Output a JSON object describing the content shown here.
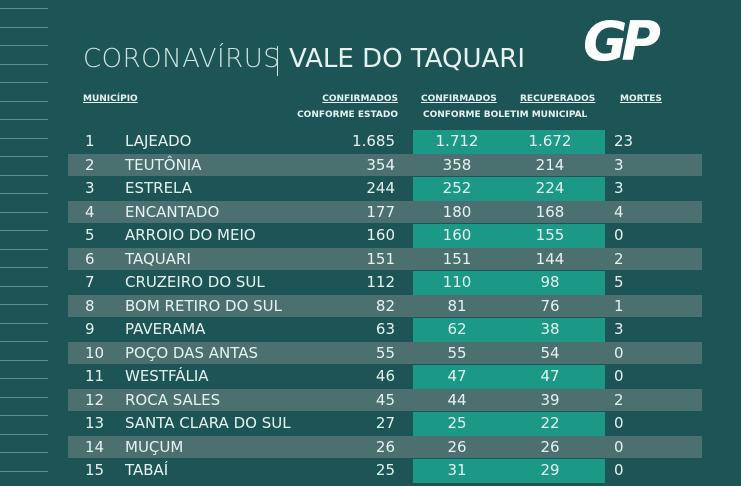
{
  "header": {
    "title": "CORONAVÍRUS",
    "subtitle": "VALE DO TAQUARI",
    "logo": "GP"
  },
  "table": {
    "columns": [
      "MUNICÍPIO",
      "CONFIRMADOS",
      "CONFORME ESTADO",
      "CONFIRMADOS",
      "RECUPERADOS",
      "CONFORME BOLETIM MUNICIPAL",
      "MORTES"
    ],
    "rows": [
      [
        "1",
        "LAJEADO",
        "1.685",
        "1.712",
        "1.672",
        "23"
      ],
      [
        "2",
        "TEUTÔNIA",
        "354",
        "358",
        "214",
        "3"
      ],
      [
        "3",
        "ESTRELA",
        "244",
        "252",
        "224",
        "3"
      ],
      [
        "4",
        "ENCANTADO",
        "177",
        "180",
        "168",
        "4"
      ],
      [
        "5",
        "ARROIO DO MEIO",
        "160",
        "160",
        "155",
        "0"
      ],
      [
        "6",
        "TAQUARI",
        "151",
        "151",
        "144",
        "2"
      ],
      [
        "7",
        "CRUZEIRO DO SUL",
        "112",
        "110",
        "98",
        "5"
      ],
      [
        "8",
        "BOM RETIRO DO SUL",
        "82",
        "81",
        "76",
        "1"
      ],
      [
        "9",
        "PAVERAMA",
        "63",
        "62",
        "38",
        "3"
      ],
      [
        "10",
        "POÇO DAS ANTAS",
        "55",
        "55",
        "54",
        "0"
      ],
      [
        "11",
        "WESTFÁLIA",
        "46",
        "47",
        "47",
        "0"
      ],
      [
        "12",
        "ROCA SALES",
        "45",
        "44",
        "39",
        "2"
      ],
      [
        "13",
        "SANTA CLARA DO SUL",
        "27",
        "25",
        "22",
        "0"
      ],
      [
        "14",
        "MUÇUM",
        "26",
        "26",
        "26",
        "0"
      ],
      [
        "15",
        "TABAÍ",
        "25",
        "31",
        "29",
        "0"
      ]
    ]
  }
}
